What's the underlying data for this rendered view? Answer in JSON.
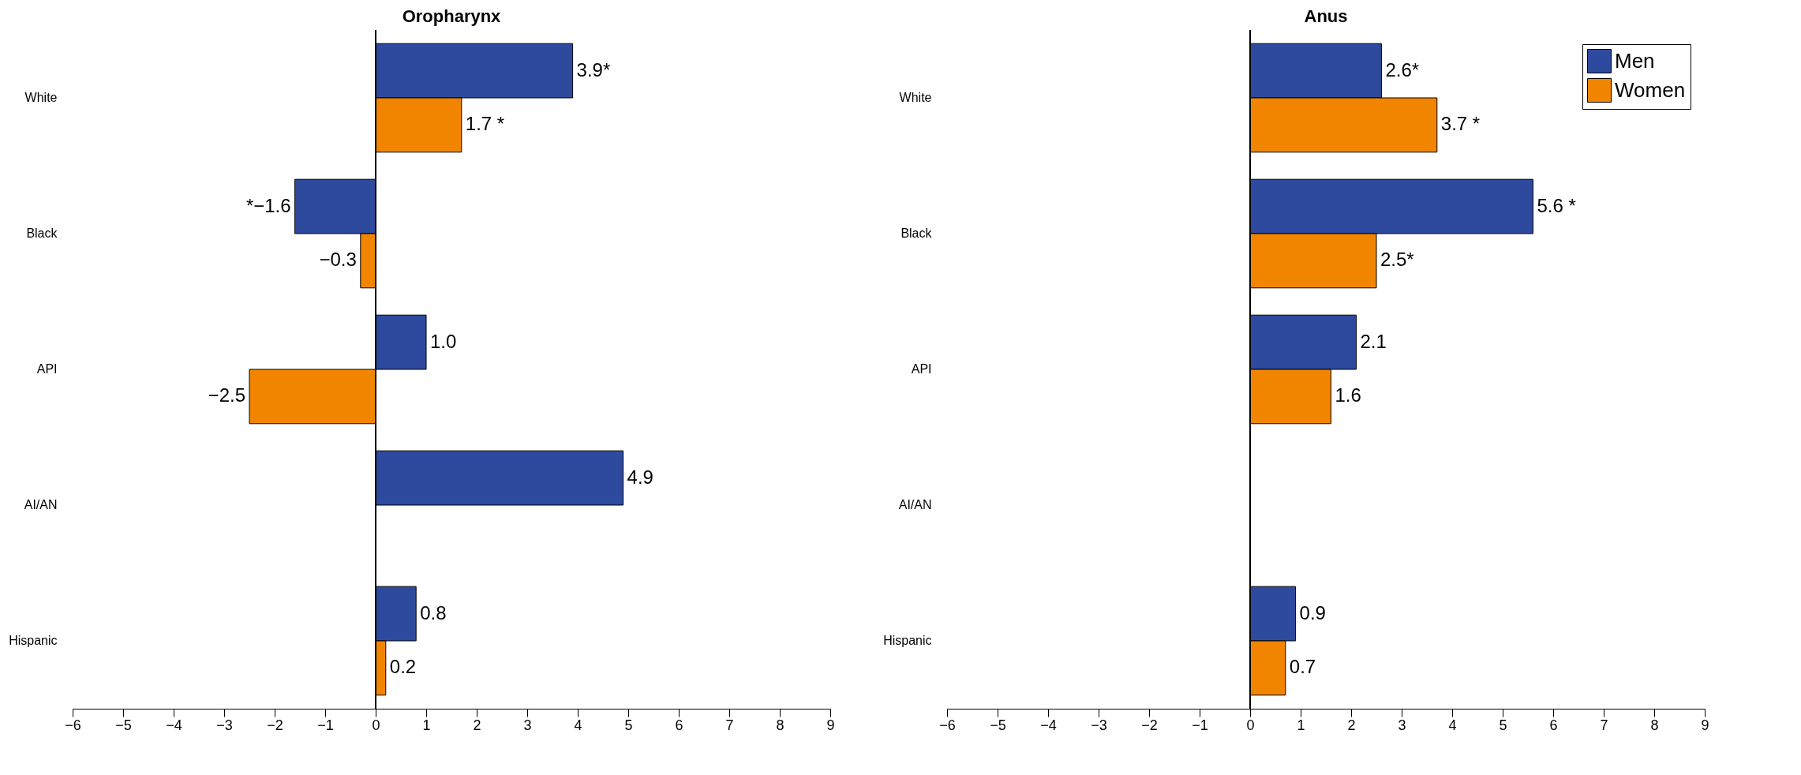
{
  "chart_data": [
    {
      "type": "bar",
      "orientation": "horizontal",
      "title": "Oropharynx",
      "categories": [
        "White",
        "Black",
        "API",
        "AI/AN",
        "Hispanic"
      ],
      "xlim": [
        -6,
        9
      ],
      "xticks": [
        -6,
        -5,
        -4,
        -3,
        -2,
        -1,
        0,
        1,
        2,
        3,
        4,
        5,
        6,
        7,
        8,
        9
      ],
      "ref_lines": [
        {
          "axis": "x",
          "value": 0
        }
      ],
      "series": [
        {
          "color": "#2e4a9e",
          "values": [
            3.9,
            -1.6,
            1.0,
            4.9,
            0.8
          ],
          "value_labels": [
            "3.9*",
            "*−1.6",
            "1.0",
            "4.9",
            "0.8"
          ]
        },
        {
          "color": "#f28500",
          "values": [
            1.7,
            -0.3,
            -2.5,
            null,
            0.2
          ],
          "value_labels": [
            "1.7 *",
            "−0.3",
            "−2.5",
            null,
            "0.2"
          ]
        }
      ]
    },
    {
      "type": "bar",
      "orientation": "horizontal",
      "title": "Anus",
      "categories": [
        "White",
        "Black",
        "API",
        "AI/AN",
        "Hispanic"
      ],
      "xlim": [
        -6,
        9
      ],
      "xticks": [
        -6,
        -5,
        -4,
        -3,
        -2,
        -1,
        0,
        1,
        2,
        3,
        4,
        5,
        6,
        7,
        8,
        9
      ],
      "legend": "top right",
      "ref_lines": [
        {
          "axis": "x",
          "value": 0
        }
      ],
      "series": [
        {
          "name": "Men",
          "color": "#2e4a9e",
          "values": [
            2.6,
            5.6,
            2.1,
            null,
            0.9
          ],
          "value_labels": [
            "2.6*",
            "5.6 *",
            "2.1",
            null,
            "0.9"
          ]
        },
        {
          "name": "Women",
          "color": "#f28500",
          "values": [
            3.7,
            2.5,
            1.6,
            null,
            0.7
          ],
          "value_labels": [
            "3.7 *",
            "2.5*",
            "1.6",
            null,
            "0.7"
          ]
        }
      ]
    }
  ]
}
